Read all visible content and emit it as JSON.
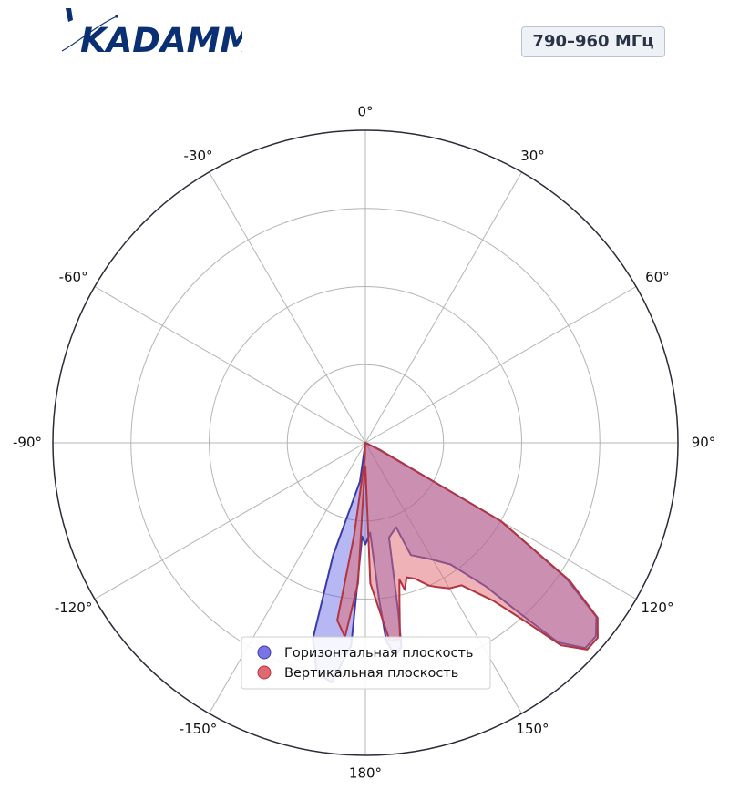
{
  "brand": {
    "name": "KADAMM",
    "colors": {
      "brand": "#0b2f73",
      "accent": "#0b2f73"
    }
  },
  "badge": {
    "frequency": "790–960 МГц"
  },
  "chart_data": {
    "type": "polar-area",
    "angle_ticks": [
      "0°",
      "30°",
      "60°",
      "90°",
      "120°",
      "150°",
      "180°",
      "-150°",
      "-120°",
      "-90°",
      "-60°",
      "-30°"
    ],
    "angle_values": [
      0,
      30,
      60,
      90,
      120,
      150,
      180,
      -150,
      -120,
      -90,
      -60,
      -30
    ],
    "radial_range": [
      0,
      4
    ],
    "radial_gridlines": [
      1,
      2,
      3,
      4
    ],
    "radial_tick_labels_shown": false,
    "grid": true,
    "legend": {
      "placement": "bottom-center"
    },
    "series": [
      {
        "name": "Горизонтальная плоскость",
        "color": "#4a4ae0",
        "edge": "#3a3aa8",
        "points": [
          [
            0,
            0
          ],
          [
            116,
            0.2
          ],
          [
            120,
            2.0
          ],
          [
            124,
            3.1
          ],
          [
            127,
            3.7
          ],
          [
            130,
            3.85
          ],
          [
            133,
            3.85
          ],
          [
            136,
            3.55
          ],
          [
            138,
            2.9
          ],
          [
            140,
            2.4
          ],
          [
            145,
            1.9
          ],
          [
            151,
            1.7
          ],
          [
            158,
            1.55
          ],
          [
            160,
            1.15
          ],
          [
            166,
            1.25
          ],
          [
            169,
            2.2
          ],
          [
            170,
            2.65
          ],
          [
            172,
            2.75
          ],
          [
            174,
            2.55
          ],
          [
            175,
            2.0
          ],
          [
            177,
            1.15
          ],
          [
            178,
            1.2
          ],
          [
            180,
            1.3
          ],
          [
            182,
            1.2
          ],
          [
            184,
            2.6
          ],
          [
            188,
            3.1
          ],
          [
            192,
            3.0
          ],
          [
            195,
            2.6
          ],
          [
            196,
            1.5
          ],
          [
            188,
            0.5
          ],
          [
            180,
            0
          ]
        ]
      },
      {
        "name": "Вертикальная плоскость",
        "color": "#e06870",
        "edge": "#b23440",
        "points": [
          [
            0,
            0
          ],
          [
            116,
            0.2
          ],
          [
            120,
            2.0
          ],
          [
            124,
            3.15
          ],
          [
            127,
            3.72
          ],
          [
            130,
            3.88
          ],
          [
            133,
            3.88
          ],
          [
            136,
            3.6
          ],
          [
            138,
            3.1
          ],
          [
            141,
            2.6
          ],
          [
            146,
            2.2
          ],
          [
            150,
            2.15
          ],
          [
            154,
            2.05
          ],
          [
            156,
            2.0
          ],
          [
            160,
            1.85
          ],
          [
            163,
            1.8
          ],
          [
            165,
            1.95
          ],
          [
            166,
            1.8
          ],
          [
            168,
            2.1
          ],
          [
            170,
            2.55
          ],
          [
            173,
            2.55
          ],
          [
            178,
            1.8
          ],
          [
            180,
            0.3
          ],
          [
            182,
            0.5
          ],
          [
            183,
            1.8
          ],
          [
            186,
            2.5
          ],
          [
            189,
            2.3
          ],
          [
            187,
            1.2
          ],
          [
            182,
            0.2
          ],
          [
            180,
            0
          ]
        ]
      }
    ]
  }
}
